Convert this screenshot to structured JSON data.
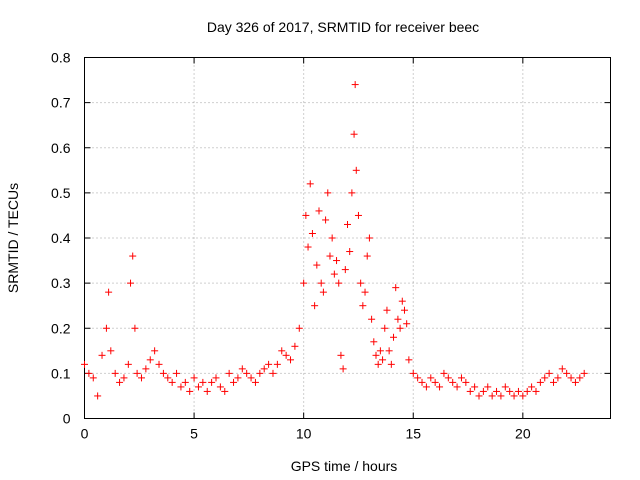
{
  "chart_data": {
    "type": "scatter",
    "title": "Day 326 of 2017, SRMTID for receiver beec",
    "xlabel": "GPS time / hours",
    "ylabel": "SRMTID / TECUs",
    "xlim": [
      0,
      24
    ],
    "ylim": [
      0,
      0.8
    ],
    "xticks": [
      0,
      5,
      10,
      15,
      20
    ],
    "yticks": [
      0,
      0.1,
      0.2,
      0.3,
      0.4,
      0.5,
      0.6,
      0.7,
      0.8
    ],
    "xtick_labels": [
      "0",
      "5",
      "10",
      "15",
      "20"
    ],
    "ytick_labels": [
      "0",
      "0.1",
      "0.2",
      "0.3",
      "0.4",
      "0.5",
      "0.6",
      "0.7",
      "0.8"
    ],
    "grid": true,
    "marker": "+",
    "series": [
      {
        "name": "SRMTID",
        "color": "#ff0000",
        "x": [
          0.0,
          0.2,
          0.4,
          0.6,
          0.8,
          1.0,
          1.1,
          1.2,
          1.4,
          1.6,
          1.8,
          2.0,
          2.1,
          2.2,
          2.3,
          2.4,
          2.6,
          2.8,
          3.0,
          3.2,
          3.4,
          3.6,
          3.8,
          4.0,
          4.2,
          4.4,
          4.6,
          4.8,
          5.0,
          5.2,
          5.4,
          5.6,
          5.8,
          6.0,
          6.2,
          6.4,
          6.6,
          6.8,
          7.0,
          7.2,
          7.4,
          7.6,
          7.8,
          8.0,
          8.2,
          8.4,
          8.6,
          8.8,
          9.0,
          9.2,
          9.4,
          9.6,
          9.8,
          10.0,
          10.1,
          10.2,
          10.3,
          10.4,
          10.5,
          10.6,
          10.7,
          10.8,
          10.9,
          11.0,
          11.1,
          11.2,
          11.3,
          11.4,
          11.5,
          11.6,
          11.7,
          11.8,
          11.9,
          12.0,
          12.1,
          12.2,
          12.3,
          12.35,
          12.4,
          12.5,
          12.6,
          12.7,
          12.8,
          12.9,
          13.0,
          13.1,
          13.2,
          13.3,
          13.4,
          13.5,
          13.6,
          13.7,
          13.8,
          13.9,
          14.0,
          14.1,
          14.2,
          14.3,
          14.4,
          14.5,
          14.6,
          14.7,
          14.8,
          15.0,
          15.2,
          15.4,
          15.6,
          15.8,
          16.0,
          16.2,
          16.4,
          16.6,
          16.8,
          17.0,
          17.2,
          17.4,
          17.6,
          17.8,
          18.0,
          18.2,
          18.4,
          18.6,
          18.8,
          19.0,
          19.2,
          19.4,
          19.6,
          19.8,
          20.0,
          20.2,
          20.4,
          20.6,
          20.8,
          21.0,
          21.2,
          21.4,
          21.6,
          21.8,
          22.0,
          22.2,
          22.4,
          22.6,
          22.8
        ],
        "y": [
          0.12,
          0.1,
          0.09,
          0.05,
          0.14,
          0.2,
          0.28,
          0.15,
          0.1,
          0.08,
          0.09,
          0.12,
          0.3,
          0.36,
          0.2,
          0.1,
          0.09,
          0.11,
          0.13,
          0.15,
          0.12,
          0.1,
          0.09,
          0.08,
          0.1,
          0.07,
          0.08,
          0.06,
          0.09,
          0.07,
          0.08,
          0.06,
          0.08,
          0.09,
          0.07,
          0.06,
          0.1,
          0.08,
          0.09,
          0.11,
          0.1,
          0.09,
          0.08,
          0.1,
          0.11,
          0.12,
          0.1,
          0.12,
          0.15,
          0.14,
          0.13,
          0.16,
          0.2,
          0.3,
          0.45,
          0.38,
          0.52,
          0.41,
          0.25,
          0.34,
          0.46,
          0.3,
          0.28,
          0.44,
          0.5,
          0.36,
          0.4,
          0.32,
          0.35,
          0.3,
          0.14,
          0.11,
          0.33,
          0.43,
          0.37,
          0.5,
          0.63,
          0.74,
          0.55,
          0.45,
          0.3,
          0.25,
          0.28,
          0.36,
          0.4,
          0.22,
          0.17,
          0.14,
          0.12,
          0.15,
          0.13,
          0.2,
          0.24,
          0.15,
          0.12,
          0.18,
          0.29,
          0.22,
          0.2,
          0.26,
          0.24,
          0.21,
          0.13,
          0.1,
          0.09,
          0.08,
          0.07,
          0.09,
          0.08,
          0.07,
          0.1,
          0.09,
          0.08,
          0.07,
          0.09,
          0.08,
          0.06,
          0.07,
          0.05,
          0.06,
          0.07,
          0.05,
          0.06,
          0.05,
          0.07,
          0.06,
          0.05,
          0.06,
          0.05,
          0.06,
          0.07,
          0.06,
          0.08,
          0.09,
          0.1,
          0.08,
          0.09,
          0.11,
          0.1,
          0.09,
          0.08,
          0.09,
          0.1
        ]
      }
    ]
  }
}
